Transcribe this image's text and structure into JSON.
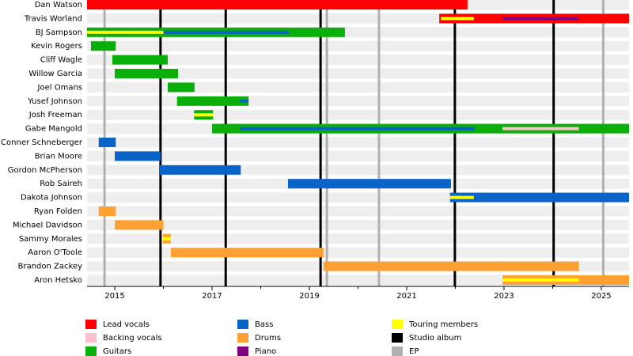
{
  "chart_data": {
    "type": "timeline",
    "categories": [
      "Dan Watson",
      "Travis Worland",
      "BJ Sampson",
      "Kevin Rogers",
      "Cliff Wagle",
      "Willow Garcia",
      "Joel Omans",
      "Yusef Johnson",
      "Josh Freeman",
      "Gabe Mangold",
      "Conner Schneberger",
      "Brian Moore",
      "Gordon McPherson",
      "Rob Saireh",
      "Dakota Johnson",
      "Ryan Folden",
      "Michael Davidson",
      "Sammy Morales",
      "Aaron O'Toole",
      "Brandon Zackey",
      "Aron Hetsko"
    ],
    "series": [
      {
        "name": "Lead vocals",
        "color": "#ff0000",
        "values": [
          [
            2014.43,
            2022.25
          ],
          [
            2021.67,
            2025.57
          ],
          null,
          null,
          null,
          null,
          null,
          null,
          null,
          null,
          null,
          null,
          null,
          null,
          null,
          null,
          null,
          null,
          null,
          null,
          null
        ]
      },
      {
        "name": "Backing vocals",
        "color": "#ffc0cb",
        "bar": "thin",
        "values": [
          null,
          null,
          null,
          null,
          null,
          null,
          null,
          null,
          null,
          [
            2022.97,
            2024.54
          ],
          null,
          null,
          null,
          null,
          null,
          null,
          null,
          null,
          null,
          null,
          null
        ]
      },
      {
        "name": "Guitars",
        "color": "#0aaf0a",
        "values": [
          null,
          null,
          [
            2014.43,
            2019.73
          ],
          [
            2014.51,
            2015.02
          ],
          [
            2014.95,
            2016.09
          ],
          [
            2015.0,
            2016.3
          ],
          [
            2016.09,
            2016.64
          ],
          [
            2016.28,
            2017.75
          ],
          [
            2016.63,
            2017.02
          ],
          [
            2017.0,
            2025.57
          ],
          null,
          null,
          null,
          null,
          null,
          null,
          null,
          null,
          null,
          null,
          null
        ]
      },
      {
        "name": "Bass",
        "color": "#0a64c8",
        "values": [
          null,
          null,
          [
            2014.43,
            2018.58
          ],
          null,
          null,
          null,
          null,
          [
            2017.57,
            2017.75
          ],
          null,
          [
            2017.57,
            2022.4
          ],
          [
            2014.67,
            2015.02
          ],
          [
            2015.0,
            2015.94
          ],
          [
            2015.91,
            2017.59
          ],
          [
            2018.56,
            2021.91
          ],
          [
            2021.89,
            2025.57
          ],
          null,
          null,
          null,
          null,
          null,
          null
        ]
      },
      {
        "name": "Drums",
        "color": "#ffa032",
        "values": [
          null,
          null,
          null,
          null,
          null,
          null,
          null,
          null,
          null,
          null,
          null,
          null,
          null,
          null,
          null,
          [
            2014.67,
            2015.02
          ],
          [
            2015.0,
            2016.0
          ],
          [
            2015.99,
            2016.15
          ],
          [
            2016.15,
            2019.29
          ],
          [
            2019.29,
            2024.54
          ],
          [
            2022.97,
            2025.57
          ]
        ]
      },
      {
        "name": "Piano",
        "color": "#800080",
        "bar": "thin",
        "values": [
          null,
          [
            2022.97,
            2024.54
          ],
          null,
          null,
          null,
          null,
          null,
          null,
          null,
          null,
          null,
          null,
          null,
          null,
          null,
          null,
          null,
          null,
          null,
          null,
          null
        ]
      },
      {
        "name": "Touring members",
        "color": "#ffff00",
        "bar": "thin",
        "values": [
          null,
          [
            2021.7,
            2022.38
          ],
          [
            2014.43,
            2016.0
          ],
          null,
          null,
          null,
          null,
          null,
          [
            2016.63,
            2017.02
          ],
          null,
          null,
          null,
          null,
          null,
          [
            2021.89,
            2022.38
          ],
          null,
          null,
          [
            2015.99,
            2016.15
          ],
          null,
          null,
          [
            2022.97,
            2024.54
          ]
        ]
      }
    ],
    "events": [
      {
        "name": "Studio album",
        "color": "#000000",
        "x": [
          2015.94,
          2017.28,
          2019.23,
          2021.99,
          2024.02
        ]
      },
      {
        "name": "EP",
        "color": "#b0b0b0",
        "x": [
          2014.79,
          2019.36,
          2020.43,
          2025.04
        ]
      }
    ],
    "xlim": [
      2014.43,
      2025.57
    ],
    "xticks": [
      2015,
      2017,
      2019,
      2021,
      2023,
      2025
    ],
    "xminorticks": [
      2016,
      2018,
      2020,
      2022,
      2024
    ],
    "grid": true
  }
}
